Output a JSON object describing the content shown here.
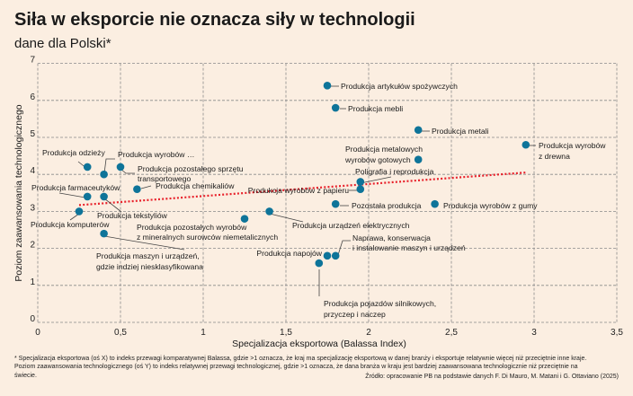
{
  "colors": {
    "background": "#fbeee1",
    "dot": "#0e7499",
    "trend": "#e8202a"
  },
  "chart_data": {
    "type": "scatter",
    "title": "Siła w eksporcie nie oznacza siły w technologii",
    "subtitle": "dane dla Polski*",
    "xlabel": "Specjalizacja eksportowa (Balassa Index)",
    "ylabel": "Poziom zaawansowania technologicznego",
    "xlim": [
      0,
      3.5
    ],
    "ylim": [
      0,
      7
    ],
    "x_ticks": [
      "0",
      "0,5",
      "1",
      "1,5",
      "2",
      "2,5",
      "3",
      "3,5"
    ],
    "y_ticks": [
      "0",
      "1",
      "2",
      "3",
      "4",
      "5",
      "6",
      "7"
    ],
    "grid": true,
    "points": [
      {
        "label": "Produkcja artykułów spożywczych",
        "x": 1.75,
        "y": 6.4
      },
      {
        "label": "Produkcja mebli",
        "x": 1.8,
        "y": 5.8
      },
      {
        "label": "Produkcja metali",
        "x": 2.3,
        "y": 5.2
      },
      {
        "label": [
          "Produkcja wyrobów",
          "z drewna"
        ],
        "x": 2.95,
        "y": 4.8
      },
      {
        "label": [
          "Produkcja metalowych",
          "wyrobów gotowych"
        ],
        "x": 2.3,
        "y": 4.4
      },
      {
        "label": "Poligrafia i reprodukcja",
        "x": 1.95,
        "y": 3.8
      },
      {
        "label": "Produkcja wyrobów z papieru",
        "x": 1.95,
        "y": 3.6
      },
      {
        "label": "Pozostała produkcja",
        "x": 1.8,
        "y": 3.2
      },
      {
        "label": "Produkcja wyrobów z gumy",
        "x": 2.4,
        "y": 3.2
      },
      {
        "label": "Produkcja urządzeń elektrycznych",
        "x": 1.4,
        "y": 3.0
      },
      {
        "label": [
          "Produkcja pozostałych wyrobów",
          "z mineralnych surowców niemetalicznych"
        ],
        "x": 1.25,
        "y": 2.8
      },
      {
        "label": "Produkcja napojów",
        "x": 1.75,
        "y": 1.8
      },
      {
        "label": [
          "Naprawa, konserwacja",
          "i instalowanie maszyn i urządzeń"
        ],
        "x": 1.8,
        "y": 1.8
      },
      {
        "label": [
          "Produkcja pojazdów silnikowych,",
          "przyczep i naczep"
        ],
        "x": 1.7,
        "y": 1.6
      },
      {
        "label": "Produkcja odzieży",
        "x": 0.3,
        "y": 4.2
      },
      {
        "label": "Produkcja wyrobów …",
        "x": 0.4,
        "y": 4.0
      },
      {
        "label": [
          "Produkcja pozostałego sprzętu",
          "transportowego"
        ],
        "x": 0.5,
        "y": 4.2
      },
      {
        "label": "Produkcja chemikaliów",
        "x": 0.6,
        "y": 3.6
      },
      {
        "label": "Produkcja farmaceutyków",
        "x": 0.3,
        "y": 3.4
      },
      {
        "label": "Produkcja tekstyliów",
        "x": 0.4,
        "y": 3.4
      },
      {
        "label": "Produkcja komputerów",
        "x": 0.25,
        "y": 3.0
      },
      {
        "label": [
          "Produkcja maszyn i urządzeń,",
          "gdzie indziej niesklasyfikowana"
        ],
        "x": 0.4,
        "y": 2.4
      }
    ],
    "trendline": {
      "x": [
        0.25,
        2.95
      ],
      "y": [
        3.17,
        4.05
      ]
    }
  },
  "footnote": [
    "* Specjalizacja eksportowa (oś X) to indeks przewagi komparatywnej Balassa, gdzie >1 oznacza, że kraj ma specjalizację eksportową w danej branży i eksportuje relatywnie więcej niż przeciętnie inne kraje.",
    "Poziom zaawansowania technologicznego (oś Y) to indeks relatywnej przewagi technologicznej, gdzie >1 oznacza, że dana branża w kraju jest bardziej zaawansowana technologicznie niż przeciętnie na",
    "świecie."
  ],
  "source": "Źródło: opracowanie PB na podstawie danych F. Di Mauro, M. Matani i G. Ottaviano (2025)"
}
